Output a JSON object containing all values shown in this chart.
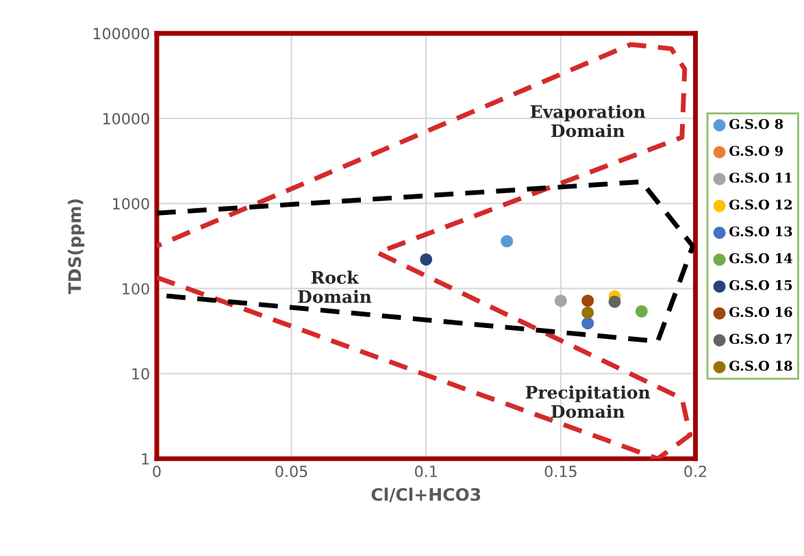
{
  "chart_data": {
    "type": "scatter",
    "xlabel": "Cl/Cl+HCO3",
    "ylabel": "TDS(ppm)",
    "xlim": [
      0,
      0.2
    ],
    "xticks": [
      0,
      0.05,
      0.1,
      0.15,
      0.2
    ],
    "ylim": [
      1,
      100000
    ],
    "yticks": [
      1,
      10,
      100,
      1000,
      10000,
      100000
    ],
    "log": "y",
    "grid": true,
    "legend": "right",
    "series": [
      {
        "name": "G.S.O 8",
        "color": "#5b9bd5",
        "x": [
          0.13
        ],
        "values": [
          360
        ]
      },
      {
        "name": "G.S.O 9",
        "color": "#ed7d31",
        "x": [
          null
        ],
        "values": [
          null
        ]
      },
      {
        "name": "G.S.O 11",
        "color": "#a5a5a5",
        "x": [
          0.15
        ],
        "values": [
          72
        ]
      },
      {
        "name": "G.S.O 12",
        "color": "#ffc000",
        "x": [
          0.17
        ],
        "values": [
          81
        ]
      },
      {
        "name": "G.S.O 13",
        "color": "#4472c4",
        "x": [
          0.16
        ],
        "values": [
          39
        ]
      },
      {
        "name": "G.S.O 14",
        "color": "#70ad47",
        "x": [
          0.18
        ],
        "values": [
          54
        ]
      },
      {
        "name": "G.S.O 15",
        "color": "#264478",
        "x": [
          0.1
        ],
        "values": [
          220
        ]
      },
      {
        "name": "G.S.O 16",
        "color": "#9e480e",
        "x": [
          0.16
        ],
        "values": [
          72
        ]
      },
      {
        "name": "G.S.O 17",
        "color": "#636363",
        "x": [
          0.17
        ],
        "values": [
          70
        ]
      },
      {
        "name": "G.S.O 18",
        "color": "#997300",
        "x": [
          0.16
        ],
        "values": [
          52
        ]
      },
      {
        "type": "line",
        "line_style": "dashed",
        "color": "#d42a2a",
        "x": [
          0,
          0.186,
          0.198,
          0.195,
          0.082,
          0.195,
          0.196,
          0.191,
          0.176,
          0
        ],
        "values": [
          135,
          1,
          1.9,
          5.1,
          264,
          6000,
          38000,
          66000,
          74000,
          316
        ]
      },
      {
        "type": "line",
        "line_style": "dashed",
        "color": "#000000",
        "x": [
          0,
          0.18,
          0.199,
          0.186,
          0
        ],
        "values": [
          770,
          1800,
          316,
          24,
          84
        ]
      }
    ],
    "annotations": [
      "Evaporation\nDomain",
      "Rock\nDomain",
      "Precipitation\nDomain"
    ]
  }
}
